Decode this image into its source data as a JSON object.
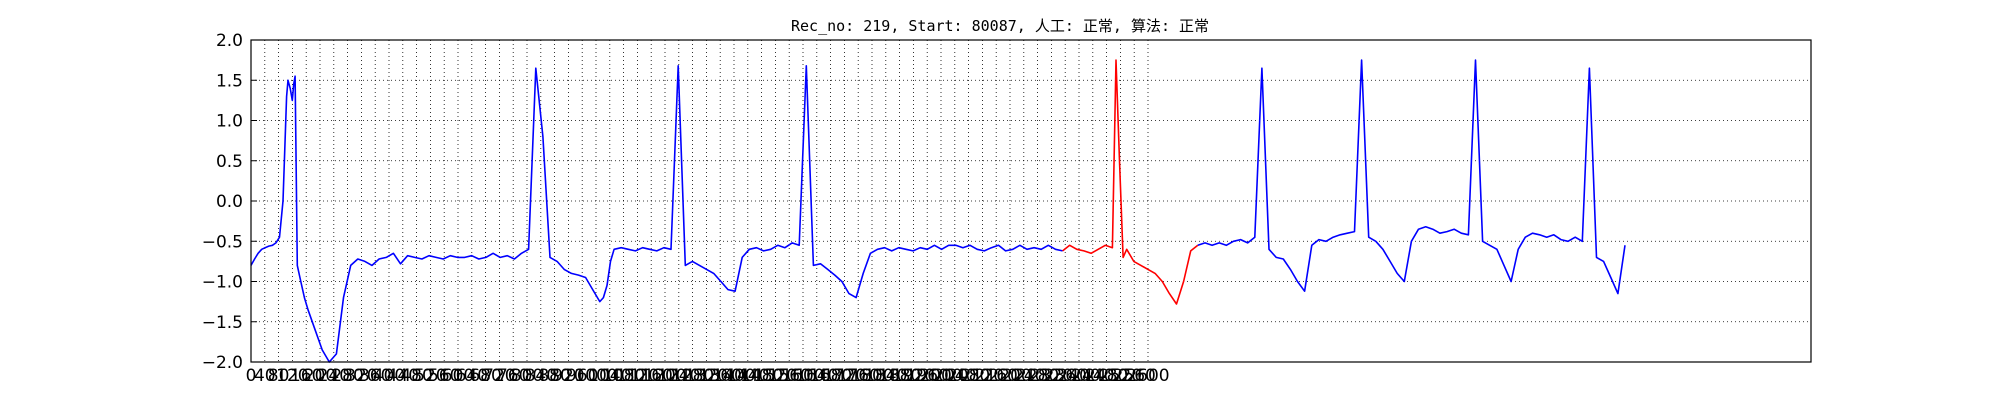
{
  "chart_data": {
    "type": "line",
    "title": "Rec_no: 219, Start: 80087, 人工: 正常, 算法: 正常",
    "xlabel": "",
    "ylabel": "",
    "xlim": [
      0,
      1930
    ],
    "ylim": [
      -2.0,
      2.0
    ],
    "y_ticks": [
      "2.0",
      "1.5",
      "1.0",
      "0.5",
      "0.0",
      "−0.5",
      "−1.0",
      "−1.5",
      "−2.0"
    ],
    "y_tick_values": [
      2.0,
      1.5,
      1.0,
      0.5,
      0.0,
      -0.5,
      -1.0,
      -1.5,
      -2.0
    ],
    "x_ticks": [
      "0",
      "40",
      "80",
      "120",
      "160",
      "200",
      "240",
      "280",
      "320",
      "360",
      "400",
      "440",
      "480",
      "520",
      "560",
      "600",
      "640",
      "680",
      "720",
      "760",
      "800",
      "840",
      "880",
      "920",
      "960",
      "1000",
      "1040",
      "1080",
      "1120",
      "1160",
      "1200",
      "1240",
      "1280",
      "1320",
      "1360",
      "1400",
      "1440",
      "1480",
      "1520",
      "1560",
      "1600",
      "1640",
      "1680",
      "1720",
      "1760",
      "1800",
      "1840",
      "1880",
      "1920",
      "1960",
      "2000",
      "2040",
      "2080",
      "2120",
      "2160",
      "2200",
      "2240",
      "2280",
      "2320",
      "2360",
      "2400",
      "2440",
      "2480",
      "2520",
      "2560",
      "2600"
    ],
    "x_tick_values": [
      0,
      40,
      80,
      120,
      160,
      200,
      240,
      280,
      320,
      360,
      400,
      440,
      480,
      520,
      560,
      600,
      640,
      680,
      720,
      760,
      800,
      840,
      880,
      920,
      960,
      1000,
      1040,
      1080,
      1120,
      1160,
      1200,
      1240,
      1280,
      1320,
      1360,
      1400,
      1440,
      1480,
      1520,
      1560,
      1600,
      1640,
      1680,
      1720,
      1760,
      1800,
      1840,
      1880,
      1920,
      1960,
      2000,
      2040,
      2080,
      2120,
      2160,
      2200,
      2240,
      2280,
      2320,
      2360,
      2400,
      2440,
      2480,
      2520,
      2560,
      2600
    ],
    "grid": true,
    "grid_style": "dotted",
    "series": [
      {
        "color": "#0000ff",
        "x": [
          0,
          5,
          10,
          15,
          20,
          25,
          30,
          35,
          40,
          45,
          50,
          52,
          55,
          58,
          60,
          62,
          65,
          70,
          75,
          80,
          90,
          100,
          110,
          120,
          130,
          140,
          150,
          160,
          170,
          180,
          190,
          200,
          210,
          220,
          230,
          240,
          250,
          260,
          270,
          280,
          290,
          300,
          310,
          320,
          330,
          340,
          350,
          360,
          370,
          380,
          390,
          400,
          410,
          420,
          430,
          440,
          450,
          460,
          470,
          480,
          490,
          495,
          500,
          505,
          510,
          520,
          530,
          540,
          550,
          560,
          570,
          580,
          590,
          600,
          610,
          620,
          630,
          640,
          650,
          660,
          670,
          680,
          690,
          700,
          710,
          720,
          730,
          740,
          750,
          760,
          770,
          780,
          790,
          800,
          810,
          820,
          830,
          840,
          850,
          860,
          870,
          880,
          890,
          900,
          910,
          920,
          930,
          940,
          950,
          960,
          970,
          980,
          990,
          1000,
          1010,
          1020,
          1030,
          1040,
          1050,
          1060,
          1070,
          1080,
          1090,
          1100,
          1110,
          1120,
          1130,
          1140
        ],
        "y": [
          -0.8,
          -0.72,
          -0.65,
          -0.6,
          -0.58,
          -0.56,
          -0.55,
          -0.52,
          -0.45,
          0.0,
          1.3,
          1.5,
          1.4,
          1.25,
          1.45,
          1.55,
          -0.8,
          -1.0,
          -1.2,
          -1.35,
          -1.6,
          -1.85,
          -2.0,
          -1.9,
          -1.2,
          -0.8,
          -0.72,
          -0.75,
          -0.8,
          -0.72,
          -0.7,
          -0.65,
          -0.78,
          -0.68,
          -0.7,
          -0.72,
          -0.68,
          -0.7,
          -0.72,
          -0.68,
          -0.7,
          -0.7,
          -0.68,
          -0.72,
          -0.7,
          -0.65,
          -0.7,
          -0.68,
          -0.72,
          -0.65,
          -0.6,
          1.65,
          0.8,
          -0.7,
          -0.75,
          -0.85,
          -0.9,
          -0.92,
          -0.95,
          -1.1,
          -1.25,
          -1.2,
          -1.05,
          -0.75,
          -0.6,
          -0.58,
          -0.6,
          -0.62,
          -0.58,
          -0.6,
          -0.62,
          -0.58,
          -0.6,
          1.68,
          -0.8,
          -0.75,
          -0.8,
          -0.85,
          -0.9,
          -1.0,
          -1.1,
          -1.12,
          -0.7,
          -0.6,
          -0.58,
          -0.62,
          -0.6,
          -0.55,
          -0.58,
          -0.52,
          -0.55,
          1.68,
          -0.8,
          -0.78,
          -0.85,
          -0.92,
          -1.0,
          -1.15,
          -1.2,
          -0.9,
          -0.65,
          -0.6,
          -0.58,
          -0.62,
          -0.58,
          -0.6,
          -0.62,
          -0.58,
          -0.6,
          -0.55,
          -0.6,
          -0.55,
          -0.55,
          -0.58,
          -0.55,
          -0.6,
          -0.62,
          -0.58,
          -0.55,
          -0.62,
          -0.6,
          -0.55,
          -0.6,
          -0.58,
          -0.6,
          -0.55,
          -0.6,
          -0.62
        ]
      },
      {
        "color": "#ff0000",
        "x": [
          1140,
          1150,
          1160,
          1170,
          1180,
          1190,
          1200,
          1210,
          1215,
          1220,
          1225,
          1230,
          1240,
          1250,
          1260,
          1270,
          1280,
          1290,
          1300,
          1310,
          1320,
          1330
        ],
        "y": [
          -0.62,
          -0.55,
          -0.6,
          -0.62,
          -0.65,
          -0.6,
          -0.55,
          -0.58,
          1.75,
          0.5,
          -0.7,
          -0.6,
          -0.75,
          -0.8,
          -0.85,
          -0.9,
          -1.0,
          -1.15,
          -1.28,
          -1.0,
          -0.62,
          -0.55
        ]
      },
      {
        "color": "#0000ff",
        "x": [
          1330,
          1340,
          1350,
          1360,
          1370,
          1380,
          1390,
          1400,
          1410,
          1420,
          1430,
          1440,
          1450,
          1460,
          1470,
          1480,
          1490,
          1500,
          1510,
          1520,
          1530,
          1540,
          1550,
          1560,
          1570,
          1580,
          1590,
          1600,
          1610,
          1620,
          1630,
          1640,
          1650,
          1660,
          1670,
          1680,
          1690,
          1700,
          1710,
          1720,
          1730,
          1740,
          1750,
          1760,
          1770,
          1780,
          1790,
          1800,
          1810,
          1820,
          1830,
          1840,
          1850,
          1860,
          1870,
          1880,
          1890,
          1900,
          1910,
          1920,
          1930
        ],
        "y": [
          -0.55,
          -0.52,
          -0.55,
          -0.52,
          -0.55,
          -0.5,
          -0.48,
          -0.52,
          -0.45,
          1.65,
          -0.6,
          -0.7,
          -0.72,
          -0.85,
          -1.0,
          -1.12,
          -0.55,
          -0.48,
          -0.5,
          -0.45,
          -0.42,
          -0.4,
          -0.38,
          1.75,
          -0.45,
          -0.5,
          -0.6,
          -0.75,
          -0.9,
          -1.0,
          -0.5,
          -0.35,
          -0.32,
          -0.35,
          -0.4,
          -0.38,
          -0.35,
          -0.4,
          -0.42,
          1.75,
          -0.5,
          -0.55,
          -0.6,
          -0.8,
          -1.0,
          -0.6,
          -0.45,
          -0.4,
          -0.42,
          -0.45,
          -0.42,
          -0.48,
          -0.5,
          -0.45,
          -0.5,
          1.65,
          -0.7,
          -0.75,
          -0.95,
          -1.15,
          -0.55
        ]
      }
    ]
  }
}
